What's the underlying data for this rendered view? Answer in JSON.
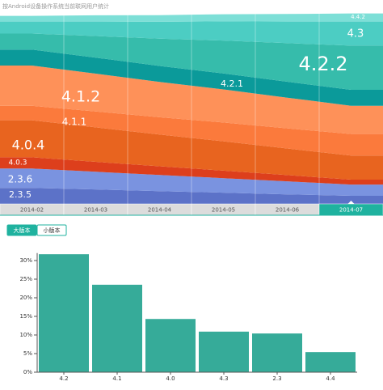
{
  "header": {
    "title": "按Android设备操作系统当前联网用户统计"
  },
  "tabs": [
    "大版本",
    "小版本"
  ],
  "active_tab": 0,
  "chart_data": [
    {
      "type": "area",
      "stacked": true,
      "selected": 5,
      "ylim": [
        0,
        102
      ],
      "categories": [
        "2014-02",
        "2014-03",
        "2014-04",
        "2014-05",
        "2014-06",
        "2014-07"
      ],
      "series": [
        {
          "name": "2.3.5",
          "color": "#5c72c8",
          "values": [
            8.5,
            7.7,
            6.8,
            6.0,
            5.1,
            4.3
          ]
        },
        {
          "name": "2.3.6",
          "color": "#7a93e0",
          "values": [
            10.3,
            9.4,
            8.6,
            7.7,
            6.9,
            6.0
          ]
        },
        {
          "name": "4.0.3",
          "color": "#dd3f1c",
          "values": [
            6.0,
            5.3,
            4.6,
            4.0,
            3.3,
            2.6
          ]
        },
        {
          "name": "4.0.4",
          "color": "#e8641f",
          "values": [
            19.7,
            18.3,
            16.9,
            15.6,
            14.2,
            12.8
          ]
        },
        {
          "name": "4.1.1",
          "color": "#fb7a3c",
          "values": [
            7.7,
            8.5,
            9.2,
            10.0,
            10.7,
            11.5
          ]
        },
        {
          "name": "4.1.2",
          "color": "#fe9159",
          "values": [
            21.4,
            20.1,
            18.8,
            17.6,
            16.3,
            15.0
          ]
        },
        {
          "name": "4.2.1",
          "color": "#0b9a9a",
          "values": [
            8.5,
            8.5,
            8.5,
            8.5,
            8.5,
            8.5
          ]
        },
        {
          "name": "4.2.2",
          "color": "#36bcab",
          "values": [
            8.5,
            11.5,
            14.5,
            17.5,
            20.5,
            23.5
          ]
        },
        {
          "name": "4.3",
          "color": "#4ccdc3",
          "values": [
            6.4,
            7.7,
            9.0,
            10.2,
            11.5,
            12.8
          ]
        },
        {
          "name": "4.4.2",
          "color": "#7ddfd7",
          "values": [
            3.0,
            3.3,
            3.5,
            3.8,
            4.0,
            4.3
          ]
        }
      ]
    },
    {
      "type": "bar",
      "color": "#36ab99",
      "categories": [
        "4.2",
        "4.1",
        "4.0",
        "4.3",
        "2.3",
        "4.4"
      ],
      "values": [
        31.7,
        23.5,
        14.3,
        10.9,
        10.4,
        5.4
      ],
      "ylim": [
        0,
        32
      ],
      "yticks": [
        {
          "value": 0,
          "label": "0%"
        },
        {
          "value": 5,
          "label": "5%"
        },
        {
          "value": 10,
          "label": "10%"
        },
        {
          "value": 15,
          "label": "15%"
        },
        {
          "value": 20,
          "label": "20%"
        },
        {
          "value": 25,
          "label": "25%"
        },
        {
          "value": 30,
          "label": "30%"
        }
      ]
    }
  ]
}
